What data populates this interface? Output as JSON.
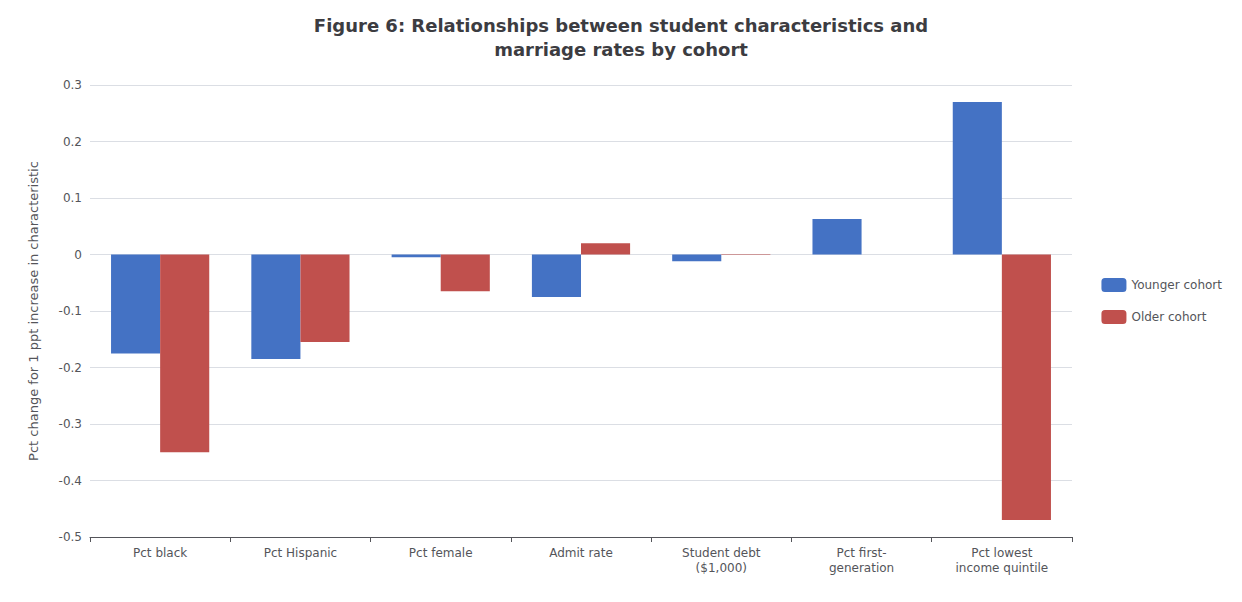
{
  "chart_data": {
    "type": "bar",
    "title": "Figure 6: Relationships between student characteristics and\nmarriage rates by cohort",
    "y_label": "Pct change for 1 ppt increase in characteristic",
    "categories": [
      "Pct black",
      "Pct Hispanic",
      "Pct female",
      "Admit rate",
      "Student debt\n($1,000)",
      "Pct first-\ngeneration",
      "Pct lowest\nincome quintile"
    ],
    "series": [
      {
        "name": "Younger cohort",
        "color": "#4472C4",
        "values": [
          -0.175,
          -0.185,
          -0.005,
          -0.075,
          -0.012,
          0.063,
          0.27
        ]
      },
      {
        "name": "Older cohort",
        "color": "#C0504D",
        "values": [
          -0.35,
          -0.155,
          -0.065,
          0.02,
          0.001,
          0.0,
          -0.47
        ]
      }
    ],
    "ylim": [
      -0.5,
      0.3
    ],
    "yticks": [
      -0.5,
      -0.4,
      -0.3,
      -0.2,
      -0.1,
      0,
      0.1,
      0.2,
      0.3
    ],
    "grid": true,
    "legend": "right"
  }
}
